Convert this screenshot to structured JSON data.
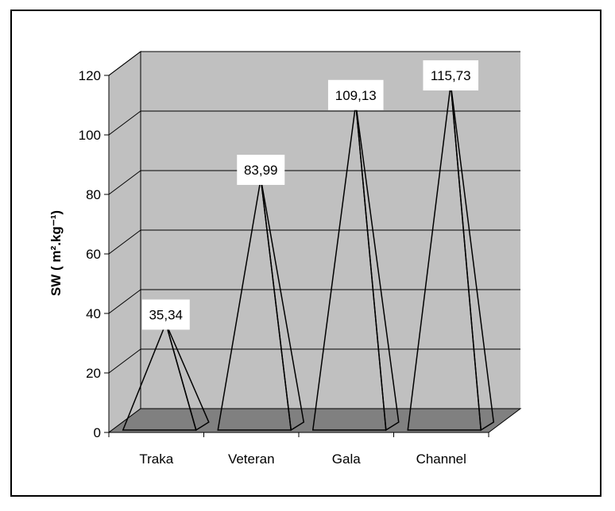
{
  "chart_data": {
    "type": "bar",
    "shape": "pyramid-3d",
    "categories": [
      "Traka",
      "Veteran",
      "Gala",
      "Channel"
    ],
    "values": [
      35.34,
      83.99,
      109.13,
      115.73
    ],
    "data_labels": [
      "35,34",
      "83,99",
      "109,13",
      "115,73"
    ],
    "ylabel": "SW ( m².kg⁻¹)",
    "ylim": [
      0,
      120
    ],
    "yticks": [
      "0",
      "20",
      "40",
      "60",
      "80",
      "100",
      "120"
    ],
    "grid": true,
    "legend": "none",
    "colors": {
      "wall": "#c0c0c0",
      "floor": "#808080",
      "pyramid_fill": "#ffffff",
      "stroke": "#000000"
    }
  }
}
